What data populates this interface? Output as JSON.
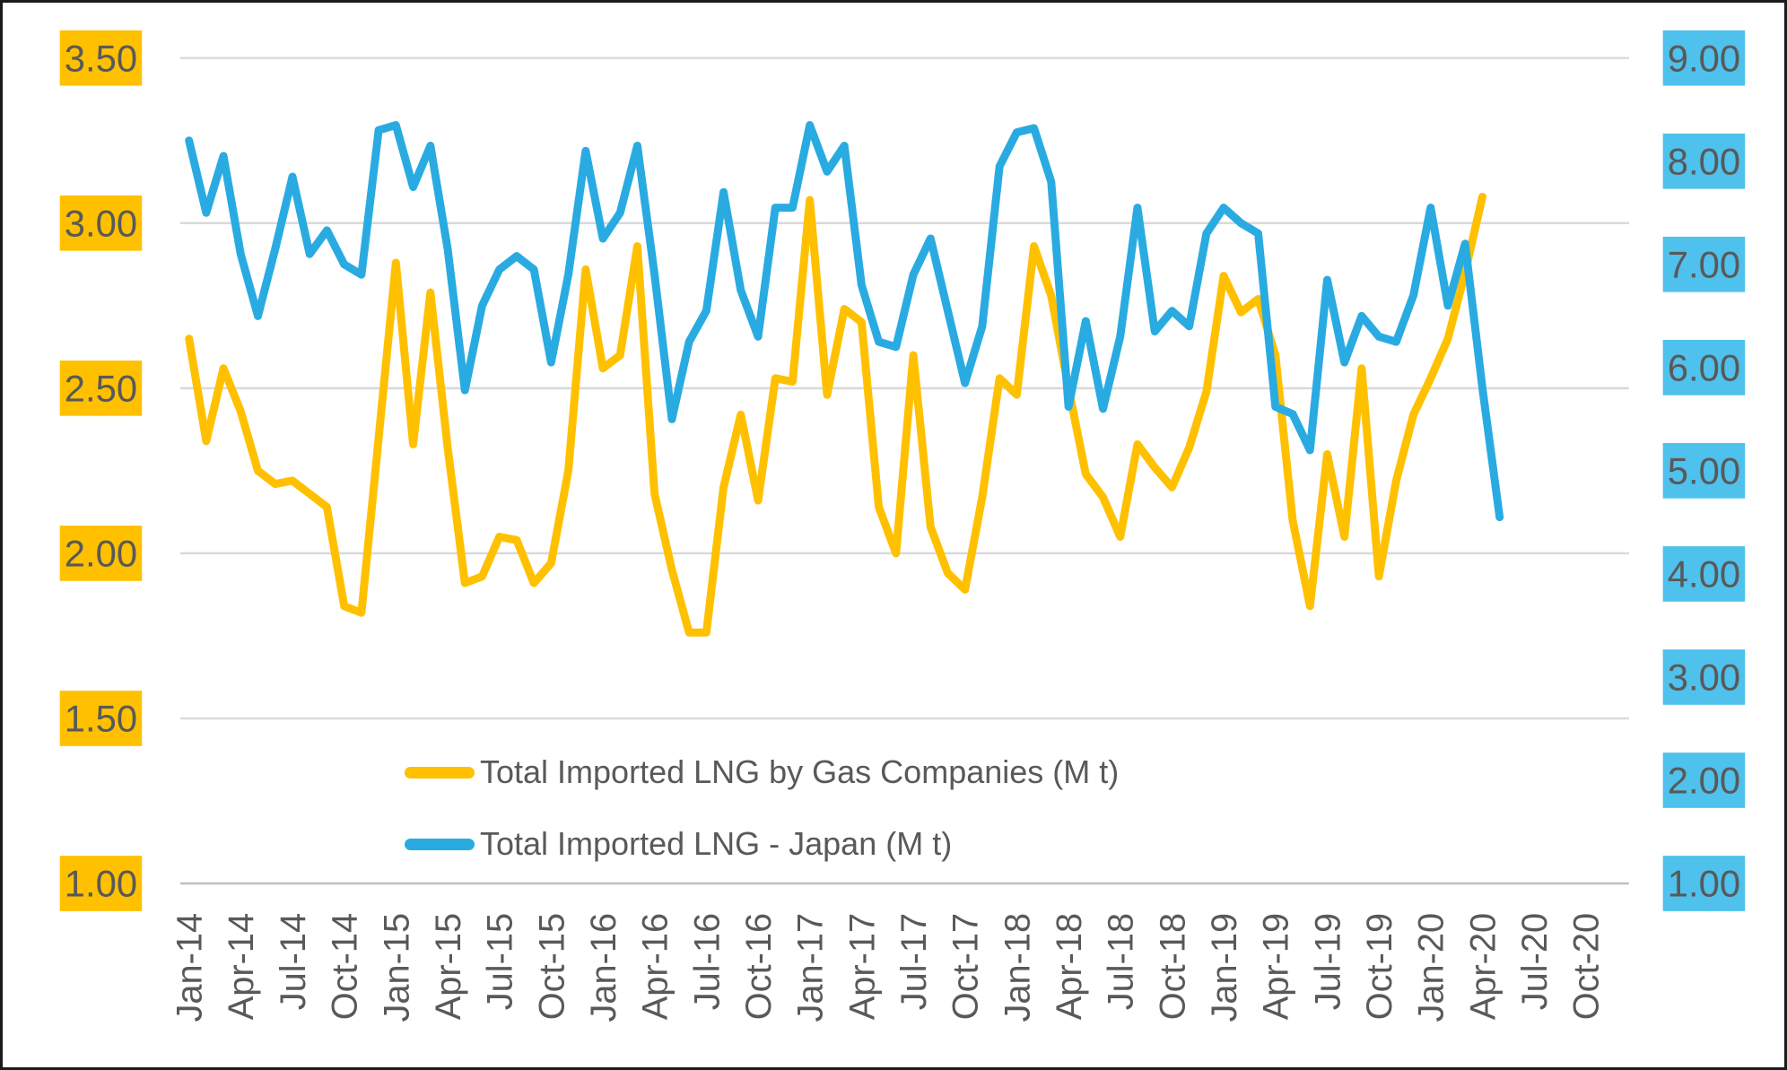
{
  "window": {
    "background": "#FFFFFF",
    "border_color": "#1B1B1B",
    "text_color": "#595959"
  },
  "chart_data": {
    "type": "line",
    "title": "",
    "categories": [
      "Jan-14",
      "Feb-14",
      "Mar-14",
      "Apr-14",
      "May-14",
      "Jun-14",
      "Jul-14",
      "Aug-14",
      "Sep-14",
      "Oct-14",
      "Nov-14",
      "Dec-14",
      "Jan-15",
      "Feb-15",
      "Mar-15",
      "Apr-15",
      "May-15",
      "Jun-15",
      "Jul-15",
      "Aug-15",
      "Sep-15",
      "Oct-15",
      "Nov-15",
      "Dec-15",
      "Jan-16",
      "Feb-16",
      "Mar-16",
      "Apr-16",
      "May-16",
      "Jun-16",
      "Jul-16",
      "Aug-16",
      "Sep-16",
      "Oct-16",
      "Nov-16",
      "Dec-16",
      "Jan-17",
      "Feb-17",
      "Mar-17",
      "Apr-17",
      "May-17",
      "Jun-17",
      "Jul-17",
      "Aug-17",
      "Sep-17",
      "Oct-17",
      "Nov-17",
      "Dec-17",
      "Jan-18",
      "Feb-18",
      "Mar-18",
      "Apr-18",
      "May-18",
      "Jun-18",
      "Jul-18",
      "Aug-18",
      "Sep-18",
      "Oct-18",
      "Nov-18",
      "Dec-18",
      "Jan-19",
      "Feb-19",
      "Mar-19",
      "Apr-19",
      "May-19",
      "Jun-19",
      "Jul-19",
      "Aug-19",
      "Sep-19",
      "Oct-19",
      "Nov-19",
      "Dec-19",
      "Jan-20",
      "Feb-20",
      "Mar-20",
      "Apr-20",
      "May-20",
      "Jun-20",
      "Jul-20",
      "Aug-20",
      "Sep-20",
      "Oct-20",
      "Nov-20",
      "Dec-20"
    ],
    "x_tick_every": 3,
    "x_tick_labels": [
      "Jan-14",
      "Apr-14",
      "Jul-14",
      "Oct-14",
      "Jan-15",
      "Apr-15",
      "Jul-15",
      "Oct-15",
      "Jan-16",
      "Apr-16",
      "Jul-16",
      "Oct-16",
      "Jan-17",
      "Apr-17",
      "Jul-17",
      "Oct-17",
      "Jan-18",
      "Apr-18",
      "Jul-18",
      "Oct-18",
      "Jan-19",
      "Apr-19",
      "Jul-19",
      "Oct-19",
      "Jan-20",
      "Apr-20",
      "Jul-20",
      "Oct-20"
    ],
    "left_axis": {
      "min": 1.0,
      "max": 3.5,
      "ticks": [
        "3.50",
        "3.00",
        "2.50",
        "2.00",
        "1.50",
        "1.00"
      ],
      "tick_values": [
        3.5,
        3.0,
        2.5,
        2.0,
        1.5,
        1.0
      ],
      "highlight": "#FFC000",
      "text_color": "#595959"
    },
    "right_axis": {
      "min": 1.0,
      "max": 9.0,
      "ticks": [
        "9.00",
        "8.00",
        "7.00",
        "6.00",
        "5.00",
        "4.00",
        "3.00",
        "2.00",
        "1.00"
      ],
      "tick_values": [
        9.0,
        8.0,
        7.0,
        6.0,
        5.0,
        4.0,
        3.0,
        2.0,
        1.0
      ],
      "highlight": "#4EC1EC",
      "text_color": "#595959"
    },
    "grid": {
      "show": true,
      "color": "#D9D9D9",
      "axis_line_color": "#BFBFBF"
    },
    "legend": {
      "position": "bottom-inside",
      "items": [
        {
          "label": "Total Imported LNG by Gas Companies (M t)",
          "color": "#FFC000"
        },
        {
          "label": "Total Imported LNG - Japan (M t)",
          "color": "#29ABE2"
        }
      ]
    },
    "series": [
      {
        "name": "Total Imported LNG by Gas Companies (M t)",
        "color": "#FFC000",
        "axis": "left",
        "values": [
          2.65,
          2.34,
          2.56,
          2.43,
          2.25,
          2.21,
          2.22,
          2.18,
          2.14,
          1.84,
          1.82,
          2.35,
          2.88,
          2.33,
          2.79,
          2.32,
          1.91,
          1.93,
          2.05,
          2.04,
          1.91,
          1.97,
          2.25,
          2.86,
          2.56,
          2.6,
          2.93,
          2.18,
          1.95,
          1.76,
          1.76,
          2.2,
          2.42,
          2.16,
          2.53,
          2.52,
          3.07,
          2.48,
          2.74,
          2.7,
          2.14,
          2.0,
          2.6,
          2.08,
          1.94,
          1.89,
          2.17,
          2.53,
          2.48,
          2.93,
          2.78,
          2.5,
          2.24,
          2.17,
          2.05,
          2.33,
          2.26,
          2.2,
          2.32,
          2.49,
          2.84,
          2.73,
          2.77,
          2.6,
          2.1,
          1.84,
          2.3,
          2.05,
          2.56,
          1.93,
          2.22,
          2.42,
          2.53,
          2.65,
          2.85,
          3.08,
          null
        ]
      },
      {
        "name": "Total Imported LNG - Japan (M t)",
        "color": "#29ABE2",
        "axis": "right",
        "values": [
          8.2,
          7.5,
          8.05,
          7.1,
          6.5,
          7.15,
          7.85,
          7.1,
          7.33,
          7.0,
          6.9,
          8.3,
          8.35,
          7.75,
          8.15,
          7.15,
          5.78,
          6.6,
          6.95,
          7.08,
          6.95,
          6.05,
          6.9,
          8.1,
          7.25,
          7.5,
          8.15,
          6.9,
          5.5,
          6.25,
          6.55,
          7.7,
          6.75,
          6.3,
          7.55,
          7.55,
          8.35,
          7.9,
          8.15,
          6.8,
          6.25,
          6.2,
          6.9,
          7.25,
          6.55,
          5.85,
          6.4,
          7.95,
          8.28,
          8.32,
          7.8,
          5.62,
          6.45,
          5.6,
          6.3,
          7.55,
          6.35,
          6.55,
          6.4,
          7.3,
          7.55,
          7.4,
          7.3,
          5.62,
          5.55,
          5.2,
          6.85,
          6.05,
          6.5,
          6.3,
          6.25,
          6.7,
          7.55,
          6.6,
          7.2,
          5.8,
          4.55
        ]
      }
    ]
  }
}
